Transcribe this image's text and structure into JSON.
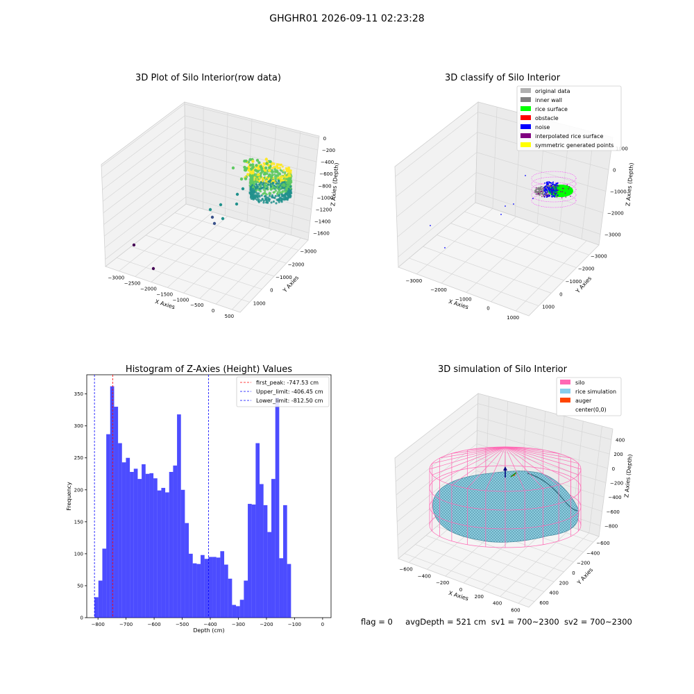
{
  "figure": {
    "suptitle": "GHGHR01 2026-09-11 02:23:28",
    "footer": {
      "flag": "flag = 0",
      "avg_depth": "avgDepth = 521 cm",
      "sv1": "sv1 = 700~2300",
      "sv2": "sv2 = 700~2300"
    }
  },
  "chart_data": [
    {
      "id": "raw",
      "type": "scatter",
      "title": "3D Plot of Silo Interior(row data)",
      "xlabel": "X Axies",
      "ylabel": "Y Axies",
      "zlabel": "Z Axies (Depth)",
      "x_ticks": [
        "−3000",
        "−2500",
        "−2000",
        "−1500",
        "−1000",
        "−500",
        "0",
        "500"
      ],
      "y_ticks": [
        "−3000",
        "−2000",
        "−1000",
        "0",
        "1000"
      ],
      "z_ticks": [
        "0",
        "−200",
        "−400",
        "−600",
        "−800",
        "−1000",
        "−1200",
        "−1400",
        "−1600"
      ],
      "colormap": [
        "#440154",
        "#3b528b",
        "#21918c",
        "#5ec962",
        "#fde725"
      ]
    },
    {
      "id": "classify",
      "type": "scatter",
      "title": "3D classify of Silo Interior",
      "xlabel": "X Axies",
      "ylabel": "Y Axies",
      "zlabel": "Z Axies (Depth)",
      "x_ticks": [
        "−3000",
        "−2000",
        "−1000",
        "0",
        "1000"
      ],
      "y_ticks": [
        "−3000",
        "−2000",
        "−1000",
        "0",
        "1000"
      ],
      "z_ticks": [
        "1000",
        "0",
        "−1000",
        "−2000",
        "−3000"
      ],
      "legend_position": "top-right",
      "legend": [
        {
          "label": "original data",
          "color": "#b0b0b0"
        },
        {
          "label": "inner wall",
          "color": "#808080"
        },
        {
          "label": "rice surface",
          "color": "#00ff00"
        },
        {
          "label": "obstacle",
          "color": "#ff0000"
        },
        {
          "label": "noise",
          "color": "#0000ff"
        },
        {
          "label": "interpolated rice surface",
          "color": "#800080"
        },
        {
          "label": "symmetric generated points",
          "color": "#ffff00"
        }
      ]
    },
    {
      "id": "hist",
      "type": "bar",
      "title": "Histogram of Z-Axies (Height) Values",
      "xlabel": "Depth (cm)",
      "ylabel": "Frequency",
      "xlim": [
        -840,
        30
      ],
      "ylim": [
        0,
        380
      ],
      "bin_start": -812.5,
      "bin_width": 14.0,
      "bar_color": "#0000ff",
      "values": [
        32,
        58,
        108,
        287,
        362,
        330,
        273,
        243,
        250,
        228,
        233,
        217,
        240,
        225,
        226,
        218,
        199,
        203,
        196,
        228,
        238,
        318,
        200,
        148,
        100,
        85,
        84,
        98,
        92,
        95,
        95,
        94,
        104,
        83,
        61,
        20,
        18,
        28,
        58,
        178,
        177,
        273,
        209,
        176,
        134,
        217,
        344,
        93,
        176,
        84
      ],
      "x_ticks": [
        -800,
        -700,
        -600,
        -500,
        -400,
        -300,
        -200,
        -100,
        0
      ],
      "x_tick_labels": [
        "−800",
        "−700",
        "−600",
        "−500",
        "−400",
        "−300",
        "−200",
        "−100",
        "0"
      ],
      "y_ticks": [
        0,
        50,
        100,
        150,
        200,
        250,
        300,
        350
      ],
      "y_tick_labels": [
        "0",
        "50",
        "100",
        "150",
        "200",
        "250",
        "300",
        "350"
      ],
      "vlines": [
        {
          "label": "first_peak: -747.53 cm",
          "x": -747.53,
          "color": "#ff0000"
        },
        {
          "label": "Upper_limit: -406.45 cm",
          "x": -406.45,
          "color": "#0000ff"
        },
        {
          "label": "Lower_limit: -812.50 cm",
          "x": -812.5,
          "color": "#0000ff"
        }
      ],
      "legend_position": "top-right"
    },
    {
      "id": "sim",
      "type": "surface",
      "title": "3D simulation of Silo Interior",
      "xlabel": "X Axies",
      "ylabel": "Y Axies",
      "zlabel": "Z Axies (Depth)",
      "x_ticks": [
        "−600",
        "−400",
        "−200",
        "0",
        "200",
        "400",
        "600"
      ],
      "y_ticks": [
        "−600",
        "−400",
        "−200",
        "0",
        "200",
        "400",
        "600"
      ],
      "z_ticks": [
        "400",
        "200",
        "0",
        "−200",
        "−400",
        "−600",
        "−800"
      ],
      "legend_position": "top-right",
      "legend": [
        {
          "label": "silo",
          "color": "#ff69b4"
        },
        {
          "label": "rice simulation",
          "color": "#87ceeb"
        },
        {
          "label": "auger",
          "color": "#ff4500"
        },
        {
          "label": "center(0,0)",
          "color": "#ffffff"
        }
      ]
    }
  ]
}
